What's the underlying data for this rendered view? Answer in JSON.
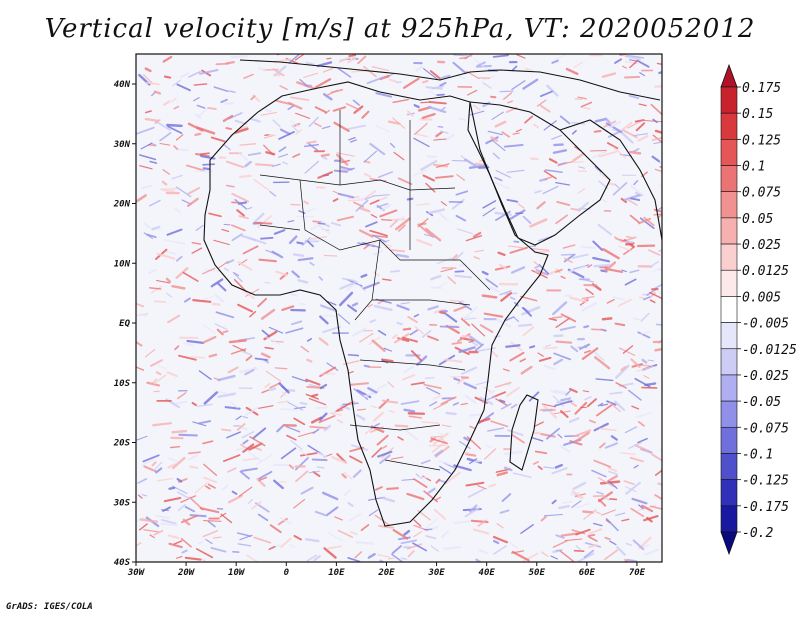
{
  "title": "Vertical velocity [m/s] at 925hPa, VT: 2020052012",
  "credit": "GrADS: IGES/COLA",
  "axes": {
    "x_ticks": [
      "30W",
      "20W",
      "10W",
      "0",
      "10E",
      "20E",
      "30E",
      "40E",
      "50E",
      "60E",
      "70E"
    ],
    "y_ticks": [
      "40N",
      "30N",
      "20N",
      "10N",
      "EQ",
      "10S",
      "20S",
      "30S",
      "40S"
    ]
  },
  "map": {
    "lon_range": [
      -30,
      75
    ],
    "lat_range": [
      -40,
      45
    ],
    "variable": "Vertical velocity",
    "units": "m/s",
    "level": "925hPa"
  },
  "colorbar": {
    "labels": [
      "0.175",
      "0.15",
      "0.125",
      "0.1",
      "0.075",
      "0.05",
      "0.025",
      "0.0125",
      "0.005",
      "-0.005",
      "-0.0125",
      "-0.025",
      "-0.05",
      "-0.075",
      "-0.1",
      "-0.125",
      "-0.175",
      "-0.2"
    ],
    "colors": [
      "#b0122a",
      "#c8232c",
      "#d9393c",
      "#e55656",
      "#ec7373",
      "#f19191",
      "#f6b0b0",
      "#facfcf",
      "#fde9e9",
      "#ffffff",
      "#e6e6fb",
      "#ccccf5",
      "#aeaef0",
      "#9090e8",
      "#7070dc",
      "#5050cc",
      "#3030b8",
      "#1818a0",
      "#0a0a80"
    ]
  }
}
